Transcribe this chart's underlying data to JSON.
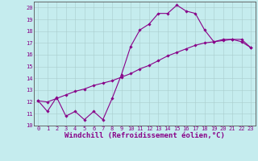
{
  "xlabel": "Windchill (Refroidissement éolien,°C)",
  "ylabel": "",
  "bg_color": "#c5ecee",
  "line_color": "#880088",
  "marker_color": "#880088",
  "xlim": [
    -0.5,
    23.5
  ],
  "ylim": [
    10,
    20.5
  ],
  "yticks": [
    10,
    11,
    12,
    13,
    14,
    15,
    16,
    17,
    18,
    19,
    20
  ],
  "xticks": [
    0,
    1,
    2,
    3,
    4,
    5,
    6,
    7,
    8,
    9,
    10,
    11,
    12,
    13,
    14,
    15,
    16,
    17,
    18,
    19,
    20,
    21,
    22,
    23
  ],
  "series1_x": [
    0,
    1,
    2,
    3,
    4,
    5,
    6,
    7,
    8,
    9,
    10,
    11,
    12,
    13,
    14,
    15,
    16,
    17,
    18,
    19,
    20,
    21,
    22,
    23
  ],
  "series1_y": [
    12.1,
    11.2,
    12.4,
    10.8,
    11.2,
    10.5,
    11.2,
    10.5,
    12.3,
    14.3,
    16.7,
    18.1,
    18.6,
    19.5,
    19.5,
    20.2,
    19.7,
    19.5,
    18.1,
    17.1,
    17.3,
    17.3,
    17.1,
    16.6
  ],
  "series2_x": [
    0,
    1,
    2,
    3,
    4,
    5,
    6,
    7,
    8,
    9,
    10,
    11,
    12,
    13,
    14,
    15,
    16,
    17,
    18,
    19,
    20,
    21,
    22,
    23
  ],
  "series2_y": [
    12.1,
    12.0,
    12.3,
    12.6,
    12.9,
    13.1,
    13.4,
    13.6,
    13.8,
    14.1,
    14.4,
    14.8,
    15.1,
    15.5,
    15.9,
    16.2,
    16.5,
    16.8,
    17.0,
    17.1,
    17.2,
    17.3,
    17.3,
    16.6
  ],
  "font_family": "monospace",
  "tick_fontsize": 5.0,
  "xlabel_fontsize": 6.5,
  "grid_color": "#aacccc",
  "grid_linewidth": 0.4
}
